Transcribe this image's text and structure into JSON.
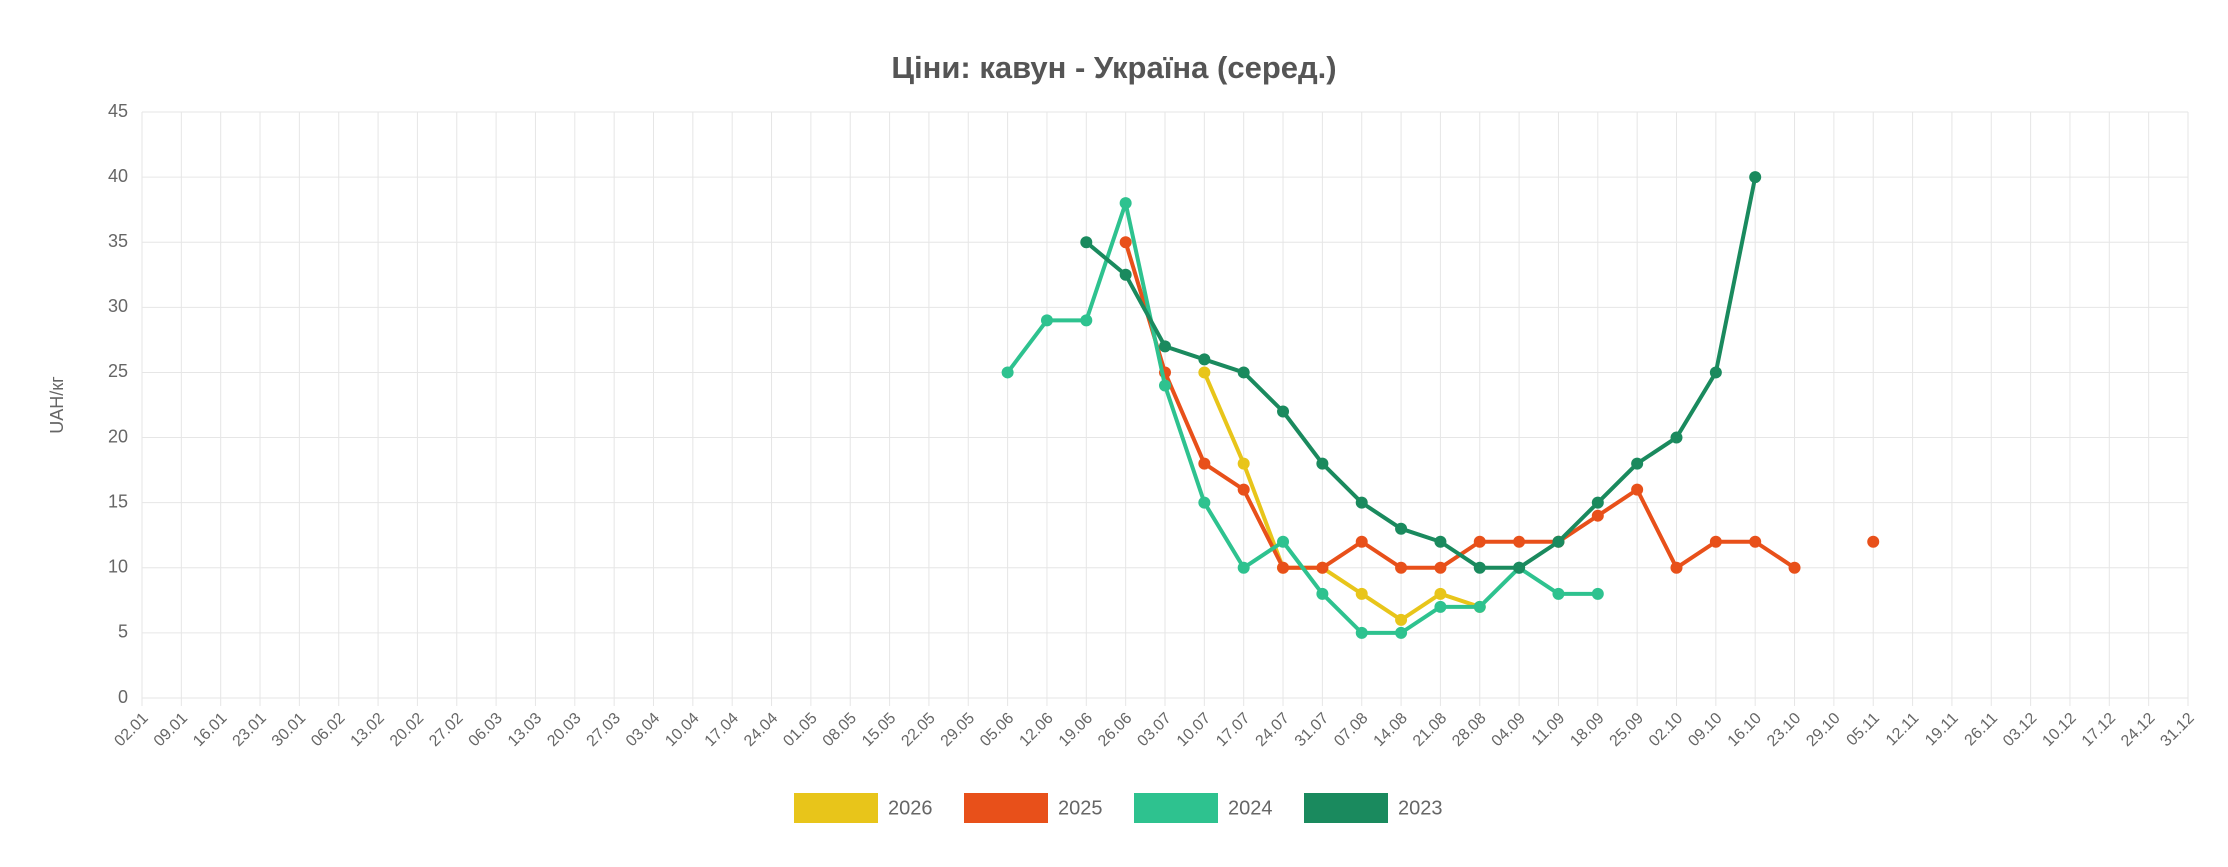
{
  "chart_data": {
    "type": "line",
    "title": "Ціни: кавун - Україна (серед.)",
    "y_label": "UAH/кг",
    "categories": [
      "02.01",
      "09.01",
      "16.01",
      "23.01",
      "30.01",
      "06.02",
      "13.02",
      "20.02",
      "27.02",
      "06.03",
      "13.03",
      "20.03",
      "27.03",
      "03.04",
      "10.04",
      "17.04",
      "24.04",
      "01.05",
      "08.05",
      "15.05",
      "22.05",
      "29.05",
      "05.06",
      "12.06",
      "19.06",
      "26.06",
      "03.07",
      "10.07",
      "17.07",
      "24.07",
      "31.07",
      "07.08",
      "14.08",
      "21.08",
      "28.08",
      "04.09",
      "11.09",
      "18.09",
      "25.09",
      "02.10",
      "09.10",
      "16.10",
      "23.10",
      "29.10",
      "05.11",
      "12.11",
      "19.11",
      "26.11",
      "03.12",
      "10.12",
      "17.12",
      "24.12",
      "31.12"
    ],
    "series": [
      {
        "name": "2026",
        "color": "#e8c51a",
        "values": [
          null,
          null,
          null,
          null,
          null,
          null,
          null,
          null,
          null,
          null,
          null,
          null,
          null,
          null,
          null,
          null,
          null,
          null,
          null,
          null,
          null,
          null,
          null,
          null,
          null,
          null,
          null,
          25,
          18,
          10,
          10,
          8,
          6,
          8,
          7,
          null,
          null,
          null,
          null,
          null,
          null,
          null,
          null,
          null,
          null,
          null,
          null,
          null,
          null,
          null,
          null,
          null,
          null
        ]
      },
      {
        "name": "2025",
        "color": "#e8501a",
        "values": [
          null,
          null,
          null,
          null,
          null,
          null,
          null,
          null,
          null,
          null,
          null,
          null,
          null,
          null,
          null,
          null,
          null,
          null,
          null,
          null,
          null,
          null,
          null,
          null,
          null,
          35,
          25,
          18,
          16,
          10,
          10,
          12,
          10,
          10,
          12,
          12,
          12,
          14,
          16,
          10,
          12,
          12,
          10,
          null,
          12,
          null,
          null,
          null,
          null,
          null,
          null,
          null,
          null
        ]
      },
      {
        "name": "2024",
        "color": "#2ec28f",
        "values": [
          null,
          null,
          null,
          null,
          null,
          null,
          null,
          null,
          null,
          null,
          null,
          null,
          null,
          null,
          null,
          null,
          null,
          null,
          null,
          null,
          null,
          null,
          25,
          29,
          29,
          38,
          24,
          15,
          10,
          12,
          8,
          5,
          5,
          7,
          7,
          10,
          8,
          8,
          null,
          null,
          null,
          null,
          null,
          null,
          null,
          null,
          null,
          null,
          null,
          null,
          null,
          null,
          null
        ]
      },
      {
        "name": "2023",
        "color": "#1a8a5e",
        "values": [
          null,
          null,
          null,
          null,
          null,
          null,
          null,
          null,
          null,
          null,
          null,
          null,
          null,
          null,
          null,
          null,
          null,
          null,
          null,
          null,
          null,
          null,
          null,
          null,
          35,
          32.5,
          27,
          26,
          25,
          22,
          18,
          15,
          13,
          12,
          10,
          10,
          12,
          15,
          18,
          20,
          25,
          40,
          null,
          null,
          null,
          null,
          null,
          null,
          null,
          null,
          null,
          null,
          null
        ]
      }
    ],
    "ylim": [
      0,
      45
    ],
    "yticks": [
      0,
      5,
      10,
      15,
      20,
      25,
      30,
      35,
      40,
      45
    ],
    "grid": true,
    "legend": "bottom"
  }
}
